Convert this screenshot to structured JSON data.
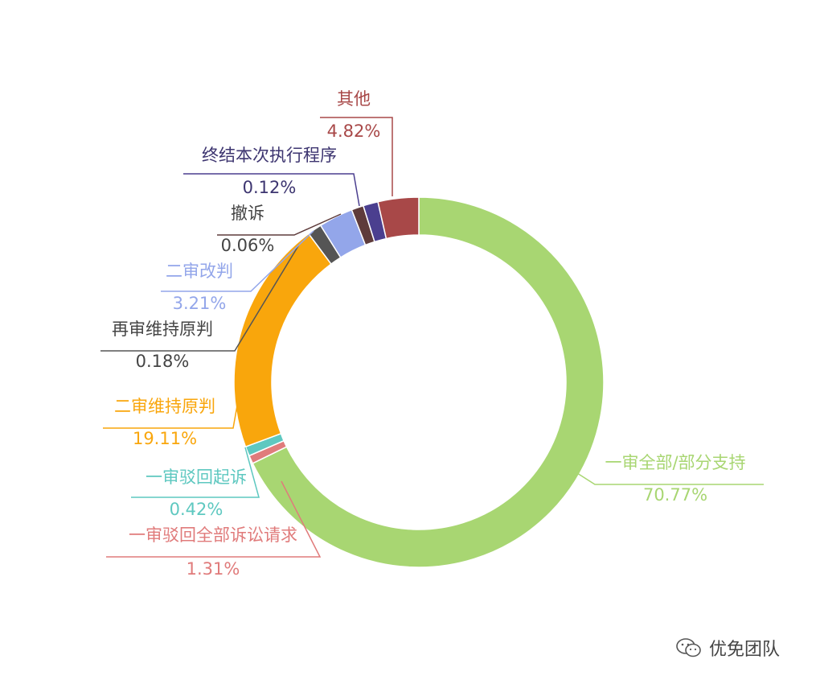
{
  "chart_data": {
    "type": "pie",
    "variant": "donut",
    "legend": "none",
    "slices": [
      {
        "label": "一审全部/部分支持",
        "value": 70.77,
        "display": "70.77%",
        "color": "#a8d672"
      },
      {
        "label": "一审驳回全部诉讼请求",
        "value": 1.31,
        "display": "1.31%",
        "color": "#e07b7b"
      },
      {
        "label": "一审驳回起诉",
        "value": 0.42,
        "display": "0.42%",
        "color": "#5ec8c0"
      },
      {
        "label": "二审维持原判",
        "value": 19.11,
        "display": "19.11%",
        "color": "#f9a60c"
      },
      {
        "label": "再审维持原判",
        "value": 0.18,
        "display": "0.18%",
        "color": "#555555"
      },
      {
        "label": "二审改判",
        "value": 3.21,
        "display": "3.21%",
        "color": "#93a6ea"
      },
      {
        "label": "撤诉",
        "value": 0.06,
        "display": "0.06%",
        "color": "#5e3b3b"
      },
      {
        "label": "终结本次执行程序",
        "value": 0.12,
        "display": "0.12%",
        "color": "#4b3f8f"
      },
      {
        "label": "其他",
        "value": 4.82,
        "display": "4.82%",
        "color": "#a84848"
      }
    ]
  },
  "watermark": {
    "text": "优免团队",
    "icon": "wechat-icon"
  }
}
